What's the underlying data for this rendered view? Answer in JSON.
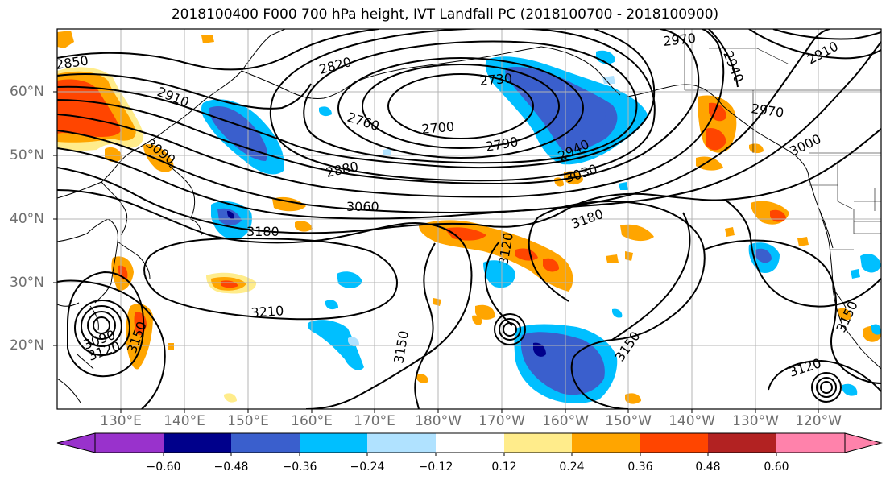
{
  "title": "2018100400 F000 700 hPa height, IVT Landfall PC (2018100700 - 2018100900)",
  "lat_labels": [
    "60°N",
    "50°N",
    "40°N",
    "30°N",
    "20°N"
  ],
  "lon_labels": [
    "130°E",
    "140°E",
    "150°E",
    "160°E",
    "170°E",
    "180°W",
    "170°W",
    "160°W",
    "150°W",
    "140°W",
    "130°W",
    "120°W"
  ],
  "contour_labels": [
    "2850",
    "2820",
    "2730",
    "2970",
    "2940",
    "2910",
    "2910",
    "2760",
    "2700",
    "2790",
    "2970",
    "3090",
    "2880",
    "2940",
    "3030",
    "3000",
    "3060",
    "3180",
    "3180",
    "3120",
    "3210",
    "3150",
    "3150",
    "3150",
    "3090",
    "3120",
    "3150",
    "3120"
  ],
  "colorbar": {
    "ticks": [
      "−0.60",
      "−0.48",
      "−0.36",
      "−0.24",
      "−0.12",
      "0.12",
      "0.24",
      "0.36",
      "0.48",
      "0.60"
    ],
    "colors": [
      "#9932cc",
      "#00008b",
      "#3a5fcd",
      "#00bfff",
      "#b0e2ff",
      "#ffffff",
      "#ffec8b",
      "#ffa500",
      "#ff4500",
      "#b22222",
      "#ff82ab"
    ]
  },
  "shading_colors": {
    "dark_navy": "#00008b",
    "royal_blue": "#3a5fcd",
    "deep_sky_blue": "#00bfff",
    "light_blue": "#b0e2ff",
    "light_yellow": "#ffec8b",
    "orange": "#ffa500",
    "orange_red": "#ff4500",
    "firebrick": "#b22222"
  }
}
